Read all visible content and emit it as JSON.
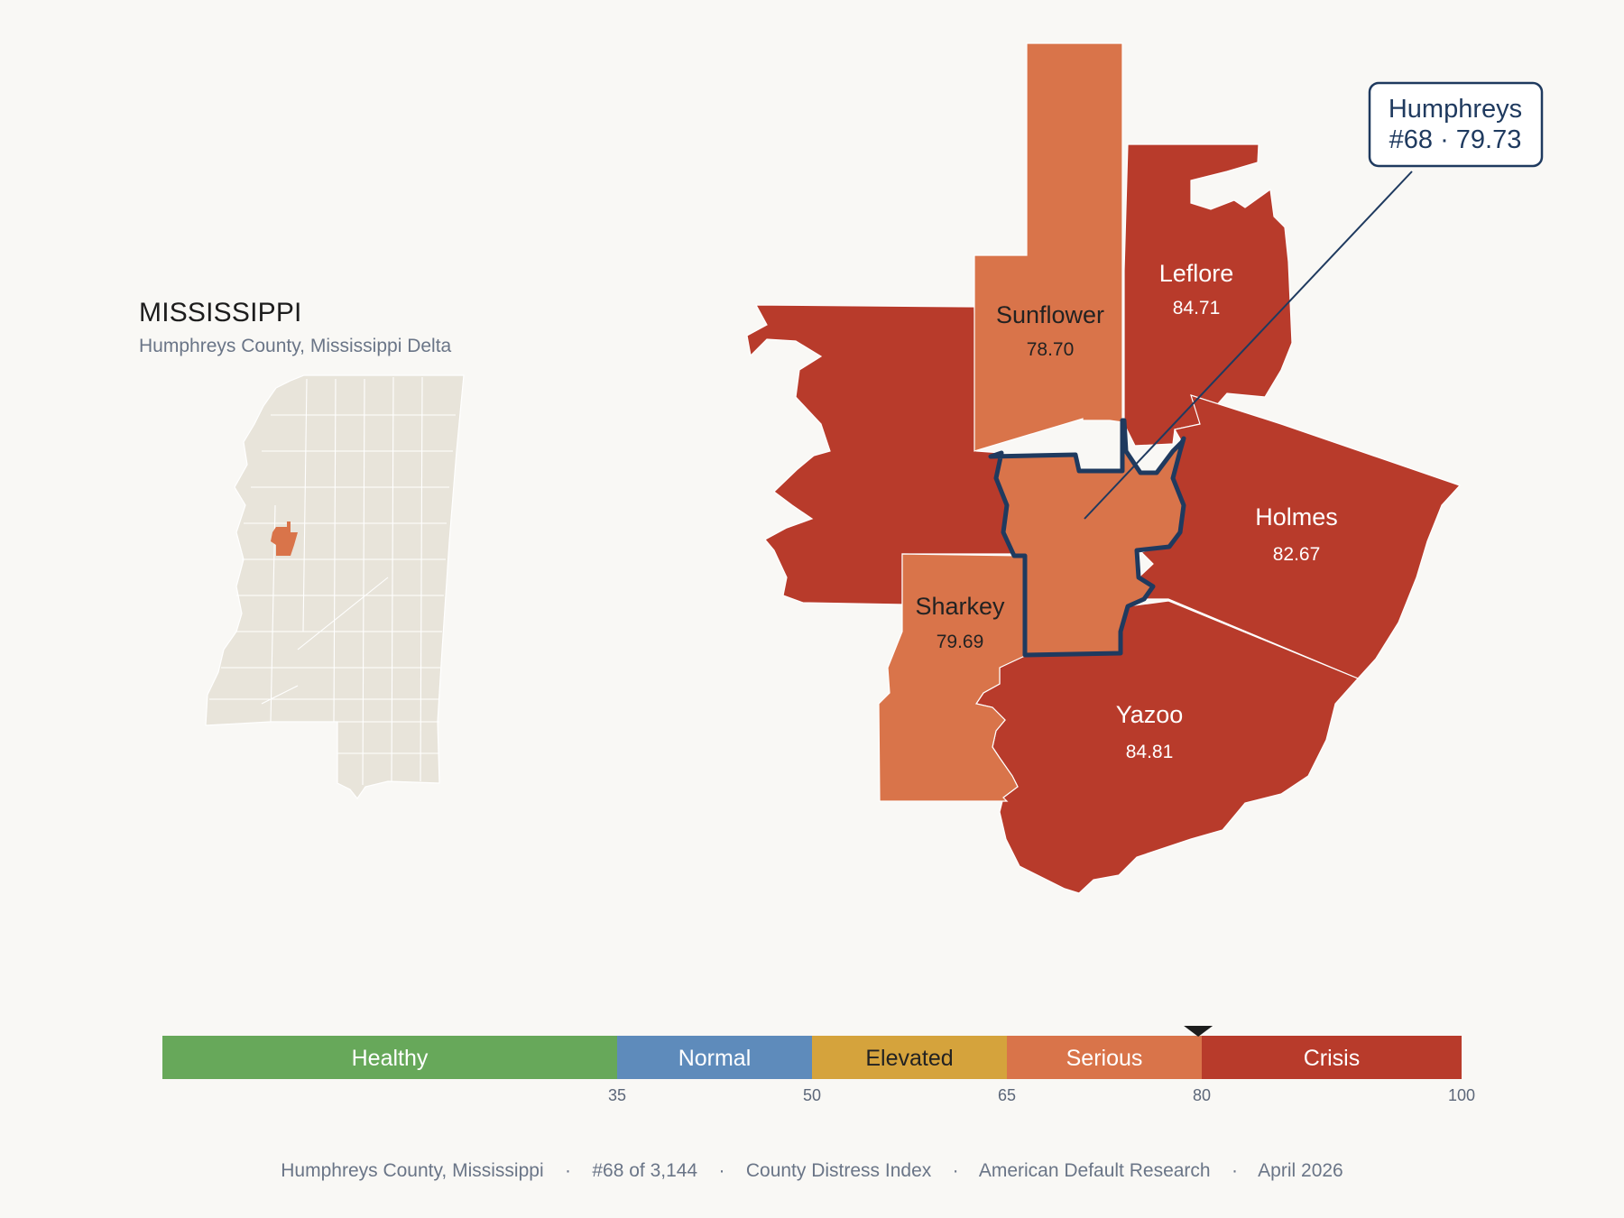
{
  "inset": {
    "state_name": "MISSISSIPPI",
    "subtitle": "Humphreys County, Mississippi Delta"
  },
  "focus_county": {
    "name": "Humphreys",
    "rank": "#68",
    "score": "79.73",
    "callout_line2": "#68 · 79.73",
    "fill": "#d9744a",
    "outline": "#1f3a5f"
  },
  "neighbors": [
    {
      "id": "sunflower",
      "name": "Sunflower",
      "score": "78.70",
      "fill": "#d9744a",
      "text": "#222222"
    },
    {
      "id": "leflore",
      "name": "Leflore",
      "score": "84.71",
      "fill": "#b83b2b",
      "text": "#ffffff"
    },
    {
      "id": "holmes",
      "name": "Holmes",
      "score": "82.67",
      "fill": "#b83b2b",
      "text": "#ffffff"
    },
    {
      "id": "yazoo",
      "name": "Yazoo",
      "score": "84.81",
      "fill": "#b83b2b",
      "text": "#ffffff"
    },
    {
      "id": "sharkey",
      "name": "Sharkey",
      "score": "79.69",
      "fill": "#d9744a",
      "text": "#222222"
    },
    {
      "id": "washington",
      "name": "",
      "score": "",
      "fill": "#b83b2b",
      "text": "#ffffff"
    }
  ],
  "legend": {
    "min": 0,
    "max": 100,
    "marker_value": 79.73,
    "bands": [
      {
        "label": "Healthy",
        "from": 0,
        "to": 35,
        "color": "#67a85a",
        "text": "#ffffff"
      },
      {
        "label": "Normal",
        "from": 35,
        "to": 50,
        "color": "#5e8bbb",
        "text": "#ffffff"
      },
      {
        "label": "Elevated",
        "from": 50,
        "to": 65,
        "color": "#d5a33c",
        "text": "#222222"
      },
      {
        "label": "Serious",
        "from": 65,
        "to": 80,
        "color": "#d9744a",
        "text": "#ffffff"
      },
      {
        "label": "Crisis",
        "from": 80,
        "to": 100,
        "color": "#b83b2b",
        "text": "#ffffff"
      }
    ],
    "ticks": [
      "35",
      "50",
      "65",
      "80",
      "100"
    ]
  },
  "footer": {
    "county": "Humphreys County, Mississippi",
    "rank": "#68 of 3,144",
    "index": "County Distress Index",
    "publisher": "American Default Research",
    "date": "April 2026",
    "separator": "·"
  },
  "colors": {
    "background": "#f9f8f5",
    "state_fill": "#e8e4da",
    "state_border": "#ffffff"
  }
}
